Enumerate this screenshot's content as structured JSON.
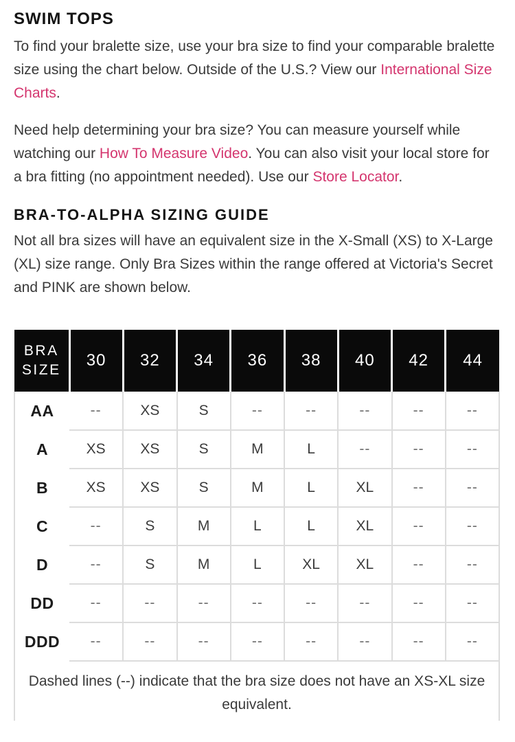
{
  "colors": {
    "accent_pink": "#d4356e",
    "table_header_bg": "#0a0a0a",
    "body_text": "#3a3a3a",
    "grid_line": "#dcdcdc"
  },
  "swim_tops": {
    "title": "SWIM TOPS",
    "intro_text": "To find your bralette size, use your bra size to find your comparable bralette size using the chart below. Outside of the U.S.? View our ",
    "intro_link": "International Size Charts",
    "intro_after": ".",
    "help_text_1": "Need help determining your bra size? You can measure yourself while watching our ",
    "help_link_video": "How To Measure Video",
    "help_text_2": ". You can also visit your local store for a bra fitting (no appointment needed). Use our ",
    "help_link_store": "Store Locator",
    "help_text_3": "."
  },
  "sizing_guide": {
    "heading": "BRA-TO-ALPHA SIZING GUIDE",
    "body": "Not all bra sizes will have an equivalent size in the X-Small (XS) to X-Large (XL) size range. Only Bra Sizes within the range offered at Victoria's Secret and PINK are shown below."
  },
  "table": {
    "columns": [
      "BRA SIZE",
      "30",
      "32",
      "34",
      "36",
      "38",
      "40",
      "42",
      "44"
    ],
    "rows": [
      {
        "label": "AA",
        "cells": [
          "--",
          "XS",
          "S",
          "--",
          "--",
          "--",
          "--",
          "--"
        ]
      },
      {
        "label": "A",
        "cells": [
          "XS",
          "XS",
          "S",
          "M",
          "L",
          "--",
          "--",
          "--"
        ]
      },
      {
        "label": "B",
        "cells": [
          "XS",
          "XS",
          "S",
          "M",
          "L",
          "XL",
          "--",
          "--"
        ]
      },
      {
        "label": "C",
        "cells": [
          "--",
          "S",
          "M",
          "L",
          "L",
          "XL",
          "--",
          "--"
        ]
      },
      {
        "label": "D",
        "cells": [
          "--",
          "S",
          "M",
          "L",
          "XL",
          "XL",
          "--",
          "--"
        ]
      },
      {
        "label": "DD",
        "cells": [
          "--",
          "--",
          "--",
          "--",
          "--",
          "--",
          "--",
          "--"
        ]
      },
      {
        "label": "DDD",
        "cells": [
          "--",
          "--",
          "--",
          "--",
          "--",
          "--",
          "--",
          "--"
        ]
      }
    ],
    "note": "Dashed lines (--) indicate that the bra size does not have an XS-XL size equivalent."
  }
}
